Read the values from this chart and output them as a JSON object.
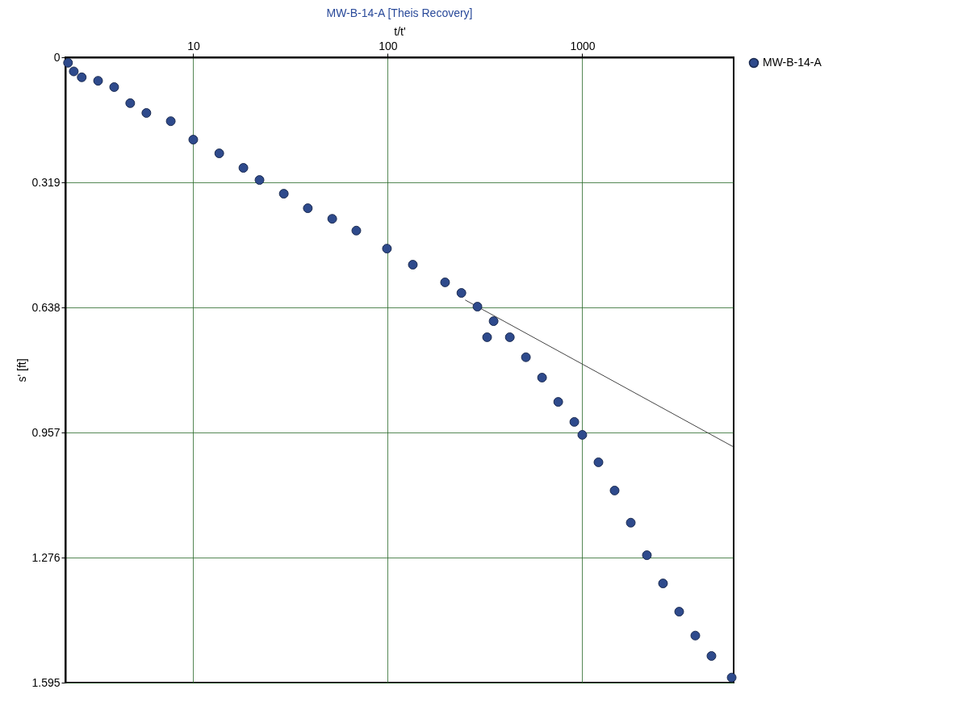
{
  "chart_data": {
    "type": "scatter",
    "title": "MW-B-14-A [Theis Recovery]",
    "xlabel": "t/t'",
    "ylabel": "s' [ft]",
    "log": "x",
    "xlim": [
      2.2,
      6000
    ],
    "ylim": [
      1.595,
      0
    ],
    "xticks": [
      10,
      100,
      1000
    ],
    "yticks": [
      0,
      0.319,
      0.638,
      0.957,
      1.276,
      1.595
    ],
    "grid": true,
    "legend": "top right",
    "series": [
      {
        "name": "MW-B-14-A",
        "color": "#2e4a8c",
        "marker": "circle",
        "x": [
          2.27,
          2.43,
          2.67,
          3.24,
          3.92,
          4.74,
          5.74,
          7.66,
          10,
          13.6,
          18.1,
          21.9,
          29.2,
          38.8,
          51.8,
          68.9,
          99,
          134.5,
          197,
          239,
          289,
          324,
          350,
          424,
          513,
          621,
          752,
          910,
          1000,
          1211,
          1466,
          1775,
          2148,
          2600,
          3148,
          3811,
          4613,
          5861
        ],
        "values": [
          0.014,
          0.036,
          0.051,
          0.06,
          0.076,
          0.117,
          0.142,
          0.163,
          0.21,
          0.245,
          0.282,
          0.313,
          0.348,
          0.385,
          0.412,
          0.442,
          0.488,
          0.529,
          0.574,
          0.601,
          0.636,
          0.714,
          0.673,
          0.714,
          0.765,
          0.817,
          0.879,
          0.93,
          0.963,
          1.033,
          1.105,
          1.187,
          1.27,
          1.342,
          1.414,
          1.475,
          1.527,
          1.582
        ]
      },
      {
        "type": "line",
        "color": "#444444",
        "x": [
          250,
          6000
        ],
        "values": [
          0.619,
          0.994
        ]
      }
    ]
  }
}
